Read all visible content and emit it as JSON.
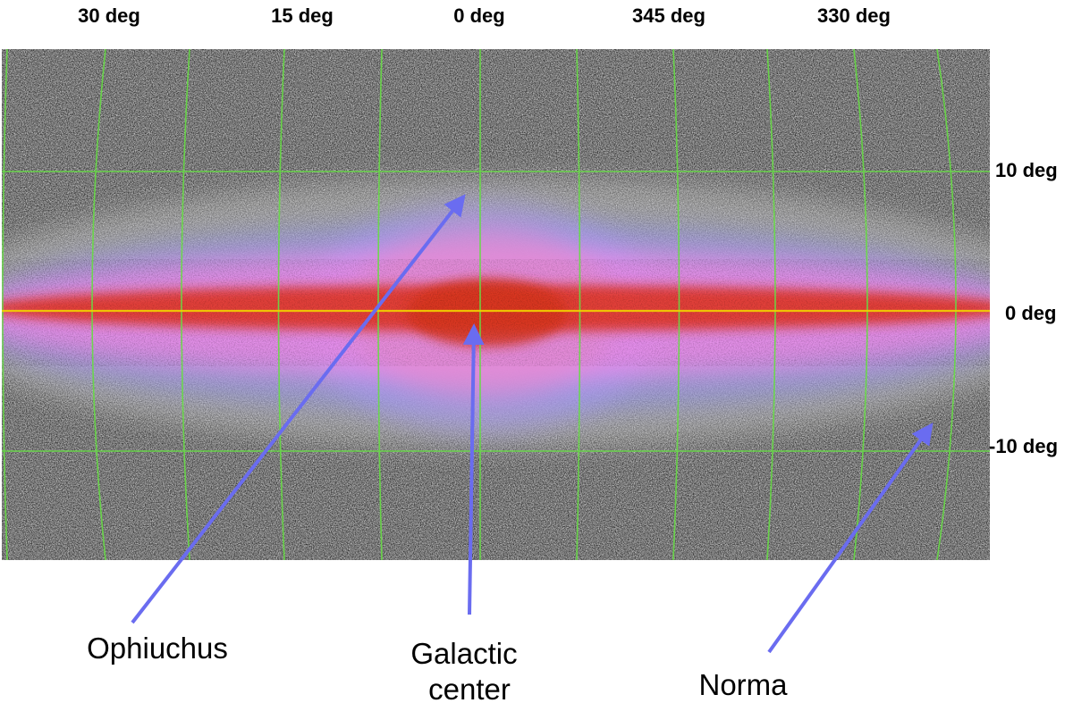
{
  "longitude_labels": [
    "30 deg",
    "15 deg",
    "0 deg",
    "345 deg",
    "330 deg"
  ],
  "latitude_labels": [
    "10 deg",
    "0 deg",
    "-10 deg"
  ],
  "annotations": {
    "ophiuchus": "Ophiuchus",
    "galactic_center_line1": "Galactic",
    "galactic_center_line2": "center",
    "norma": "Norma"
  },
  "colors": {
    "grid": "#66dd44",
    "arrow": "#6a6cf0",
    "plane_line": "#f2d200",
    "disk_core": "#e2321a",
    "disk_halo": "#ff88ee",
    "blue_fringe": "#8f8ff2",
    "sky_background": "#707070"
  }
}
